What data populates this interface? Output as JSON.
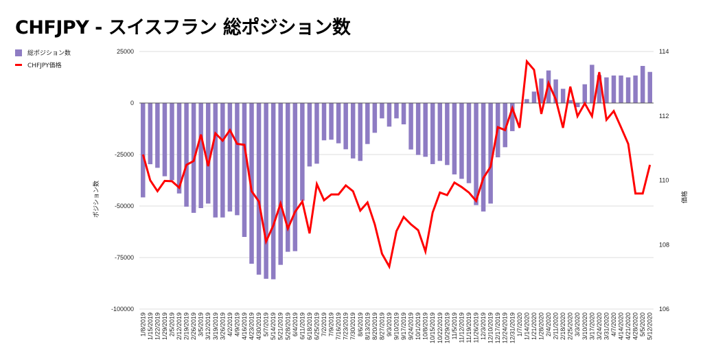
{
  "chart_data": {
    "type": "bar+line",
    "title": "CHFJPY - スイスフラン 総ポジション数",
    "ylabel_left": "ポジション数",
    "ylabel_right": "価格",
    "ylim_left": [
      -100000,
      25000
    ],
    "yticks_left": [
      25000,
      0,
      -25000,
      -50000,
      -75000,
      -100000
    ],
    "ylim_right": [
      106,
      114
    ],
    "yticks_right": [
      114,
      112,
      110,
      108,
      106
    ],
    "grid": true,
    "legend_position": "top-left",
    "colors": {
      "bar": "#8e7cc3",
      "line": "#ff0000"
    },
    "categories": [
      "1/8/2019",
      "1/15/2019",
      "1/22/2019",
      "1/29/2019",
      "2/5/2019",
      "2/12/2019",
      "2/19/2019",
      "2/26/2019",
      "3/5/2019",
      "3/12/2019",
      "3/19/2019",
      "3/26/2019",
      "4/2/2019",
      "4/9/2019",
      "4/16/2019",
      "4/23/2019",
      "4/30/2019",
      "5/7/2019",
      "5/14/2019",
      "5/21/2019",
      "5/28/2019",
      "6/4/2019",
      "6/11/2019",
      "6/18/2019",
      "6/25/2019",
      "7/2/2019",
      "7/9/2019",
      "7/16/2019",
      "7/23/2019",
      "7/30/2019",
      "8/6/2019",
      "8/13/2019",
      "8/20/2019",
      "8/27/2019",
      "9/3/2019",
      "9/10/2019",
      "9/17/2019",
      "9/24/2019",
      "10/1/2019",
      "10/8/2019",
      "10/15/2019",
      "10/22/2019",
      "10/29/2019",
      "11/5/2019",
      "11/12/2019",
      "11/19/2019",
      "11/26/2019",
      "12/3/2019",
      "12/10/2019",
      "12/17/2019",
      "12/24/2019",
      "12/31/2019",
      "1/7/2020",
      "1/14/2020",
      "1/21/2020",
      "1/28/2020",
      "2/4/2020",
      "2/11/2020",
      "2/18/2020",
      "2/25/2020",
      "3/3/2020",
      "3/10/2020",
      "3/17/2020",
      "3/24/2020",
      "3/31/2020",
      "4/7/2020",
      "4/14/2020",
      "4/21/2020",
      "4/28/2020",
      "5/5/2020",
      "5/12/2020"
    ],
    "series": [
      {
        "name": "総ポジション数",
        "type": "bar",
        "axis": "left",
        "values": [
          -45800,
          -29700,
          -31450,
          -35550,
          -37450,
          -43900,
          -50300,
          -53300,
          -51000,
          -48800,
          -55550,
          -55550,
          -52650,
          -54450,
          -65000,
          -78000,
          -83300,
          -85300,
          -85550,
          -78550,
          -72200,
          -71900,
          -47450,
          -30800,
          -29450,
          -18100,
          -17800,
          -19550,
          -22450,
          -26900,
          -28100,
          -19900,
          -14450,
          -7450,
          -11450,
          -7450,
          -10350,
          -22550,
          -25200,
          -26100,
          -29650,
          -28100,
          -30100,
          -34650,
          -36800,
          -38900,
          -49550,
          -52650,
          -48800,
          -26350,
          -21450,
          -13650,
          0,
          1900,
          5550,
          11900,
          15800,
          11450,
          6900,
          1450,
          -2000,
          9100,
          18550,
          13550,
          12450,
          13350,
          13350,
          12450,
          13350,
          18000,
          15100
        ]
      },
      {
        "name": "CHFJPY価格",
        "type": "line",
        "axis": "right",
        "values": [
          110.8,
          110.0,
          109.66,
          109.98,
          109.97,
          109.77,
          110.48,
          110.6,
          111.42,
          110.44,
          111.46,
          111.23,
          111.56,
          111.13,
          111.1,
          109.66,
          109.34,
          108.1,
          108.6,
          109.28,
          108.5,
          109.02,
          109.34,
          108.35,
          109.88,
          109.38,
          109.56,
          109.56,
          109.84,
          109.66,
          109.06,
          109.31,
          108.63,
          107.72,
          107.32,
          108.42,
          108.86,
          108.63,
          108.45,
          107.79,
          109.0,
          109.62,
          109.54,
          109.93,
          109.79,
          109.62,
          109.36,
          110.07,
          110.42,
          111.65,
          111.56,
          112.24,
          111.63,
          113.69,
          113.43,
          112.06,
          113.02,
          112.51,
          111.63,
          112.91,
          111.99,
          112.39,
          111.99,
          113.36,
          111.88,
          112.15,
          111.65,
          111.13,
          109.59,
          109.59,
          110.48
        ]
      }
    ]
  }
}
